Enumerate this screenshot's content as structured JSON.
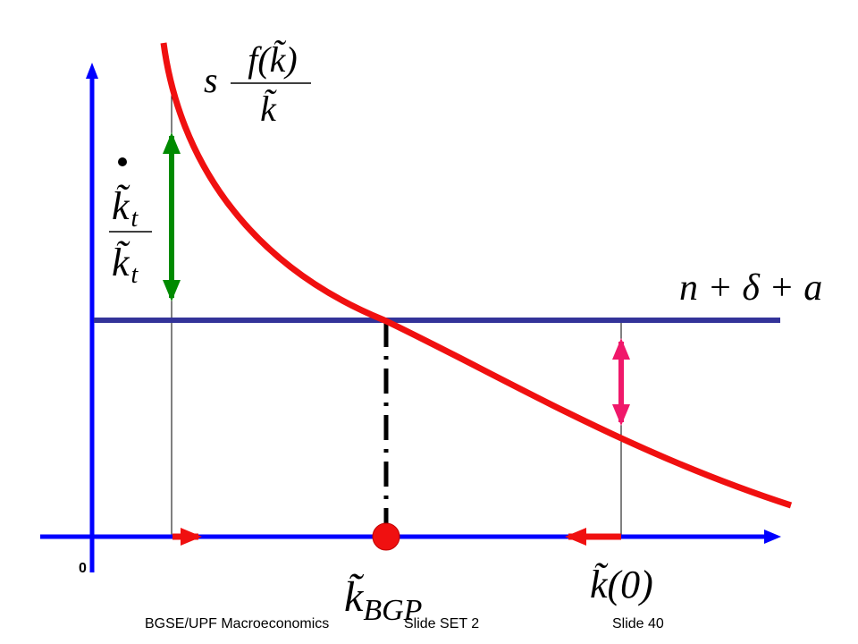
{
  "axis_origin": "0",
  "curve_label": {
    "prefix": "s",
    "numerator": "f(k̃)",
    "denominator": "k̃"
  },
  "growth_label": {
    "numerator": "k̃",
    "numerator_subscript": "t",
    "denominator": "k̃",
    "denominator_subscript": "t"
  },
  "line_label": "n + δ + a",
  "steady_state_label": {
    "base": "k̃",
    "subscript": "BGP"
  },
  "initial_label": "k̃(0)",
  "footer": {
    "course": "BGSE/UPF Macroeconomics",
    "set": "Slide SET 2",
    "slide": "Slide 40"
  }
}
